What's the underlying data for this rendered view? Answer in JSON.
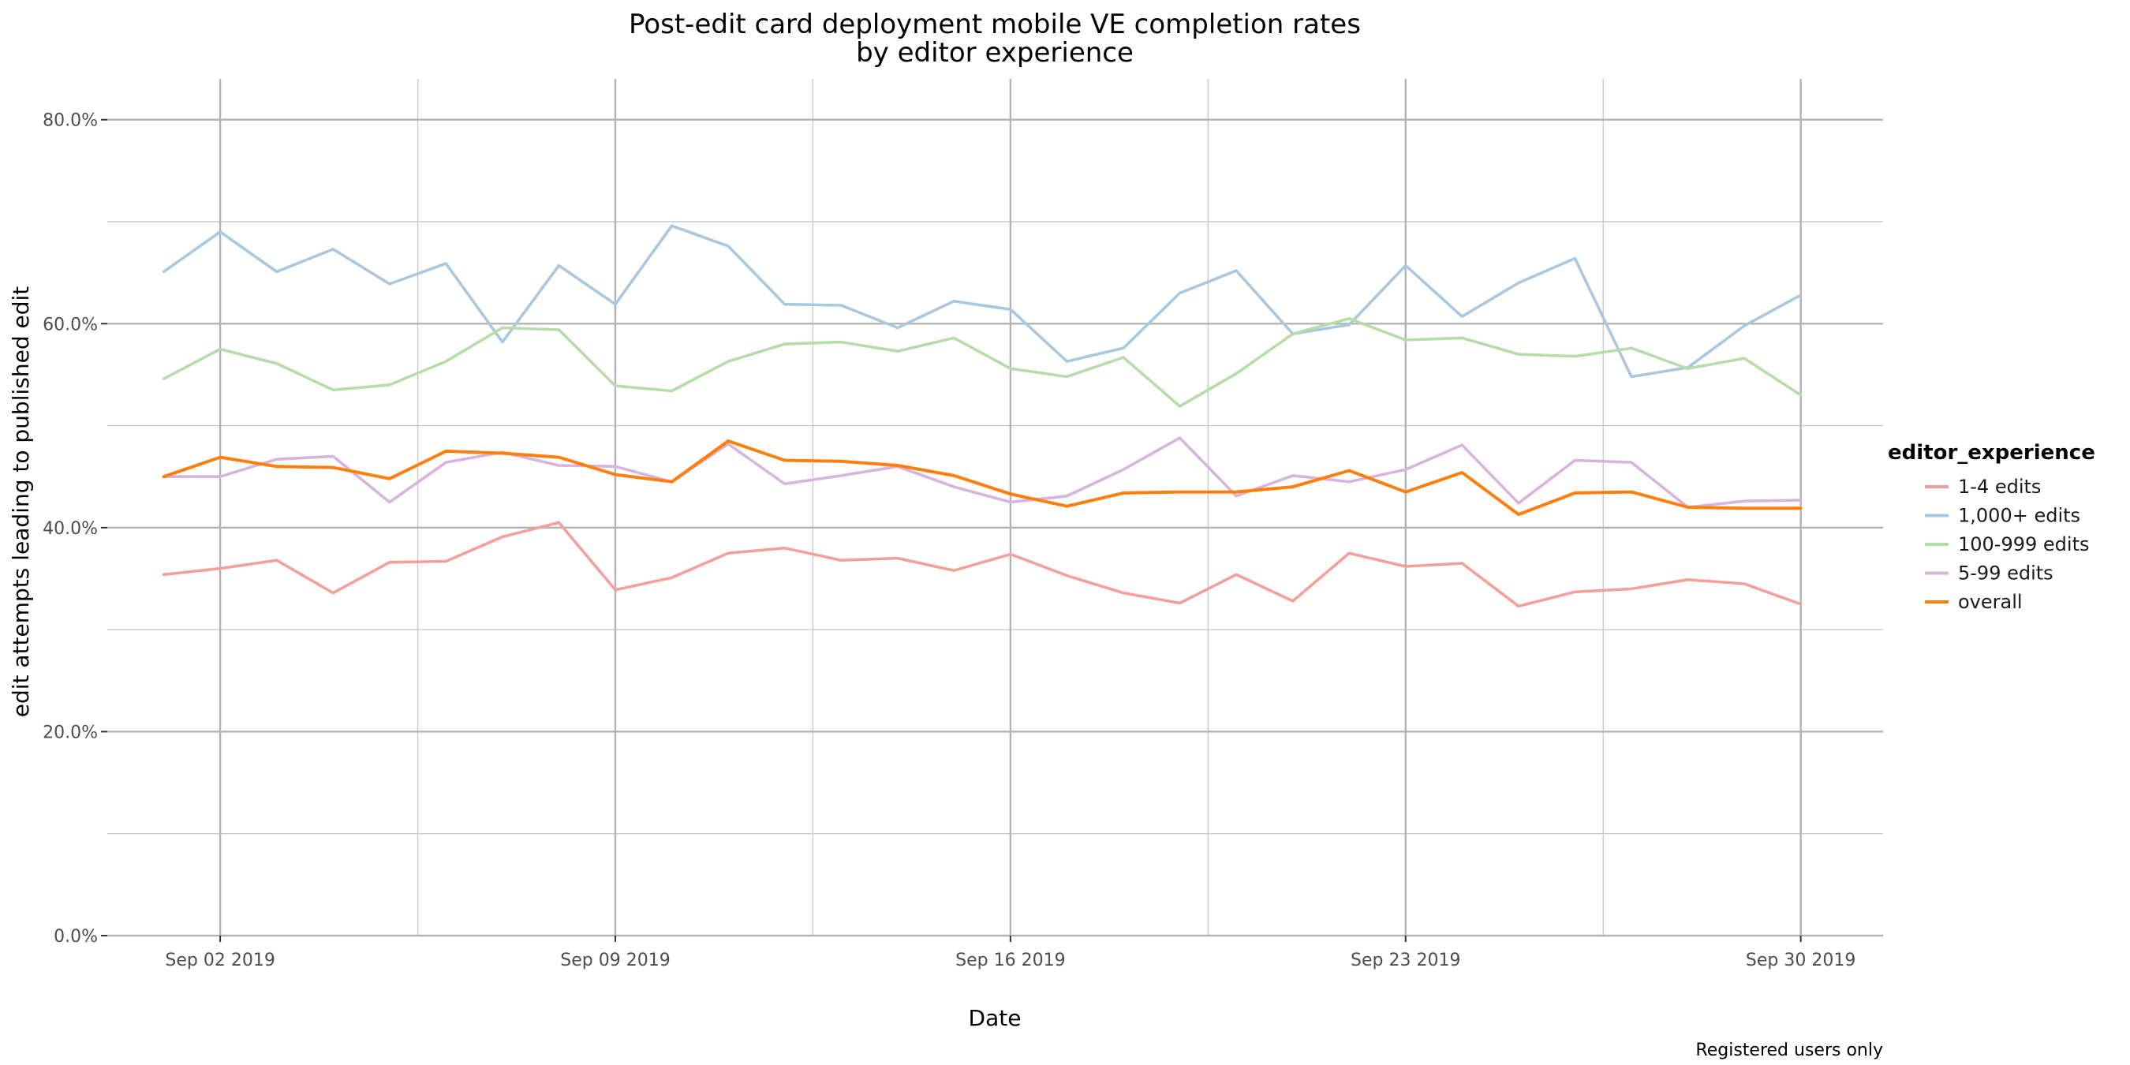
{
  "chart_data": {
    "type": "line",
    "title": "Post-edit card deployment mobile VE completion rates",
    "subtitle": "by editor experience",
    "xlabel": "Date",
    "ylabel": "edit attempts leading to published edit",
    "caption": "Registered users only",
    "legend_title": "editor_experience",
    "legend_position": "right",
    "grid": true,
    "x": [
      "2019-09-01",
      "2019-09-02",
      "2019-09-03",
      "2019-09-04",
      "2019-09-05",
      "2019-09-06",
      "2019-09-07",
      "2019-09-08",
      "2019-09-09",
      "2019-09-10",
      "2019-09-11",
      "2019-09-12",
      "2019-09-13",
      "2019-09-14",
      "2019-09-15",
      "2019-09-16",
      "2019-09-17",
      "2019-09-18",
      "2019-09-19",
      "2019-09-20",
      "2019-09-21",
      "2019-09-22",
      "2019-09-23",
      "2019-09-24",
      "2019-09-25",
      "2019-09-26",
      "2019-09-27",
      "2019-09-28",
      "2019-09-29",
      "2019-09-30"
    ],
    "x_ticks": [
      {
        "date": "2019-09-02",
        "label": "Sep 02 2019"
      },
      {
        "date": "2019-09-09",
        "label": "Sep 09 2019"
      },
      {
        "date": "2019-09-16",
        "label": "Sep 16 2019"
      },
      {
        "date": "2019-09-23",
        "label": "Sep 23 2019"
      },
      {
        "date": "2019-09-30",
        "label": "Sep 30 2019"
      }
    ],
    "x_minor_ticks": [
      "2019-09-05T12:00",
      "2019-09-12T12:00",
      "2019-09-19T12:00",
      "2019-09-26T12:00"
    ],
    "xlim": [
      "2019-08-31T00:00",
      "2019-10-01T11:00"
    ],
    "y_ticks": [
      {
        "value": 0.0,
        "label": "0.0%"
      },
      {
        "value": 0.2,
        "label": "20.0%"
      },
      {
        "value": 0.4,
        "label": "40.0%"
      },
      {
        "value": 0.6,
        "label": "60.0%"
      },
      {
        "value": 0.8,
        "label": "80.0%"
      }
    ],
    "y_minor_ticks": [
      0.1,
      0.3,
      0.5,
      0.7
    ],
    "ylim": [
      0,
      0.84
    ],
    "series": [
      {
        "name": "1-4 edits",
        "color": "#F4A09A",
        "values": [
          0.354,
          0.36,
          0.368,
          0.336,
          0.366,
          0.367,
          0.391,
          0.405,
          0.339,
          0.351,
          0.375,
          0.38,
          0.368,
          0.37,
          0.358,
          0.374,
          0.353,
          0.336,
          0.326,
          0.354,
          0.328,
          0.375,
          0.362,
          0.365,
          0.323,
          0.337,
          0.34,
          0.349,
          0.345,
          0.325
        ]
      },
      {
        "name": "1,000+ edits",
        "color": "#A9C8E0",
        "values": [
          0.651,
          0.69,
          0.651,
          0.673,
          0.639,
          0.659,
          0.582,
          0.657,
          0.619,
          0.696,
          0.676,
          0.619,
          0.618,
          0.596,
          0.622,
          0.614,
          0.563,
          0.576,
          0.63,
          0.652,
          0.59,
          0.599,
          0.657,
          0.607,
          0.64,
          0.664,
          0.548,
          0.557,
          0.598,
          0.628
        ]
      },
      {
        "name": "100-999 edits",
        "color": "#B4DDA9",
        "values": [
          0.546,
          0.575,
          0.561,
          0.535,
          0.54,
          0.563,
          0.596,
          0.594,
          0.539,
          0.534,
          0.563,
          0.58,
          0.582,
          0.573,
          0.586,
          0.556,
          0.548,
          0.567,
          0.519,
          0.551,
          0.59,
          0.605,
          0.584,
          0.586,
          0.57,
          0.568,
          0.576,
          0.556,
          0.566,
          0.53
        ]
      },
      {
        "name": "5-99 edits",
        "color": "#D7B3DE",
        "values": [
          0.45,
          0.45,
          0.467,
          0.47,
          0.425,
          0.464,
          0.474,
          0.461,
          0.46,
          0.445,
          0.482,
          0.443,
          0.451,
          0.46,
          0.44,
          0.425,
          0.431,
          0.457,
          0.488,
          0.431,
          0.451,
          0.445,
          0.457,
          0.481,
          0.424,
          0.466,
          0.464,
          0.42,
          0.426,
          0.427
        ]
      },
      {
        "name": "overall",
        "color": "#FF7F0E",
        "values": [
          0.45,
          0.469,
          0.46,
          0.459,
          0.448,
          0.475,
          0.473,
          0.469,
          0.452,
          0.445,
          0.485,
          0.466,
          0.465,
          0.461,
          0.451,
          0.433,
          0.421,
          0.434,
          0.435,
          0.435,
          0.44,
          0.456,
          0.435,
          0.454,
          0.413,
          0.434,
          0.435,
          0.42,
          0.419,
          0.419
        ]
      }
    ]
  }
}
